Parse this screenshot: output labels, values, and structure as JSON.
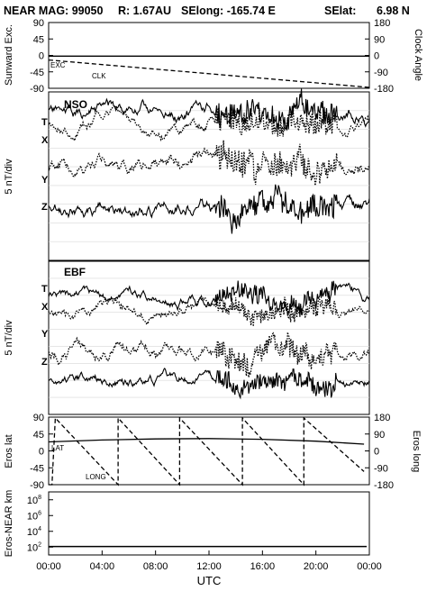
{
  "header": {
    "left": "NEAR MAG: 99050",
    "r": "R: 1.67AU",
    "selong": "SElong: -165.74 E",
    "selat": "SElat:",
    "selat_val": "6.98 N"
  },
  "chart_data": [
    {
      "type": "line",
      "ylabel": "Sunward Exc.",
      "y2label": "Clock Angle",
      "ylim": [
        -90,
        90
      ],
      "yticks": [
        "90",
        "45",
        "0",
        "-45",
        "-90"
      ],
      "y2lim": [
        -180,
        180
      ],
      "y2ticks": [
        "180",
        "90",
        "0",
        "-90",
        "-180"
      ],
      "xlim": [
        0,
        24
      ],
      "series": [
        {
          "name": "EXC",
          "axis": "left",
          "style": "solid",
          "x": [
            0,
            24
          ],
          "y": [
            -2,
            -2
          ]
        },
        {
          "name": "CLK",
          "axis": "right",
          "style": "dashed",
          "x": [
            0,
            24
          ],
          "y": [
            -25,
            -175
          ]
        }
      ]
    },
    {
      "type": "line",
      "title": "NSO",
      "ylabel": "5 nT/div",
      "xlim": [
        0,
        24
      ],
      "traces": [
        {
          "name": "T",
          "style": "solid",
          "level": 0.12,
          "amp": 0.045,
          "burst": 0.06
        },
        {
          "name": "X",
          "style": "dotted",
          "level": 0.19,
          "amp": 0.04,
          "burst": 0.06
        },
        {
          "name": "Y",
          "style": "dotted",
          "level": 0.43,
          "amp": 0.05,
          "burst": 0.07
        },
        {
          "name": "Z",
          "style": "solid",
          "level": 0.68,
          "amp": 0.05,
          "burst": 0.06
        }
      ]
    },
    {
      "type": "line",
      "title": "EBF",
      "ylabel": "5 nT/div",
      "xlim": [
        0,
        24
      ],
      "traces": [
        {
          "name": "T",
          "style": "solid",
          "level": 0.24,
          "amp": 0.04,
          "burst": 0.05
        },
        {
          "name": "X",
          "style": "dotted",
          "level": 0.32,
          "amp": 0.04,
          "burst": 0.05
        },
        {
          "name": "Y",
          "style": "dotted",
          "level": 0.58,
          "amp": 0.05,
          "burst": 0.06
        },
        {
          "name": "Z",
          "style": "solid",
          "level": 0.78,
          "amp": 0.04,
          "burst": 0.05
        }
      ]
    },
    {
      "type": "line",
      "ylabel": "Eros lat",
      "y2label": "Eros long",
      "ylim": [
        -90,
        90
      ],
      "yticks": [
        "90",
        "45",
        "0",
        "-45",
        "-90"
      ],
      "y2lim": [
        -180,
        180
      ],
      "y2ticks": [
        "180",
        "90",
        "0",
        "-90",
        "-180"
      ],
      "xlim": [
        0,
        24
      ],
      "series": [
        {
          "name": "LAT",
          "axis": "left",
          "style": "solid",
          "x": [
            0,
            4,
            8,
            12,
            16,
            20,
            23.6
          ],
          "y": [
            24,
            29,
            32,
            33,
            31,
            26,
            18
          ]
        },
        {
          "name": "LONG",
          "axis": "right",
          "style": "dashed",
          "x": [
            0,
            0.25,
            0.5,
            5.2,
            5.2,
            9.8,
            9.8,
            14.5,
            14.5,
            19.1,
            19.1,
            23.6
          ],
          "y": [
            -180,
            -180,
            175,
            -180,
            175,
            -180,
            175,
            -180,
            175,
            -180,
            175,
            -110
          ]
        }
      ]
    },
    {
      "type": "line",
      "ylabel": "Eros-NEAR km",
      "yscale": "log",
      "ylim": [
        10,
        1000000000
      ],
      "yticks": [
        {
          "base": "10",
          "exp": "8",
          "value": 100000000
        },
        {
          "base": "10",
          "exp": "6",
          "value": 1000000
        },
        {
          "base": "10",
          "exp": "4",
          "value": 10000
        },
        {
          "base": "10",
          "exp": "2",
          "value": 100
        }
      ],
      "xlabel": "UTC",
      "xticks": [
        "00:00",
        "04:00",
        "08:00",
        "12:00",
        "16:00",
        "20:00",
        "00:00"
      ],
      "xlim": [
        0,
        24
      ],
      "series": [
        {
          "style": "solid",
          "x": [
            0,
            23.8
          ],
          "y": [
            120,
            120
          ]
        }
      ]
    }
  ]
}
